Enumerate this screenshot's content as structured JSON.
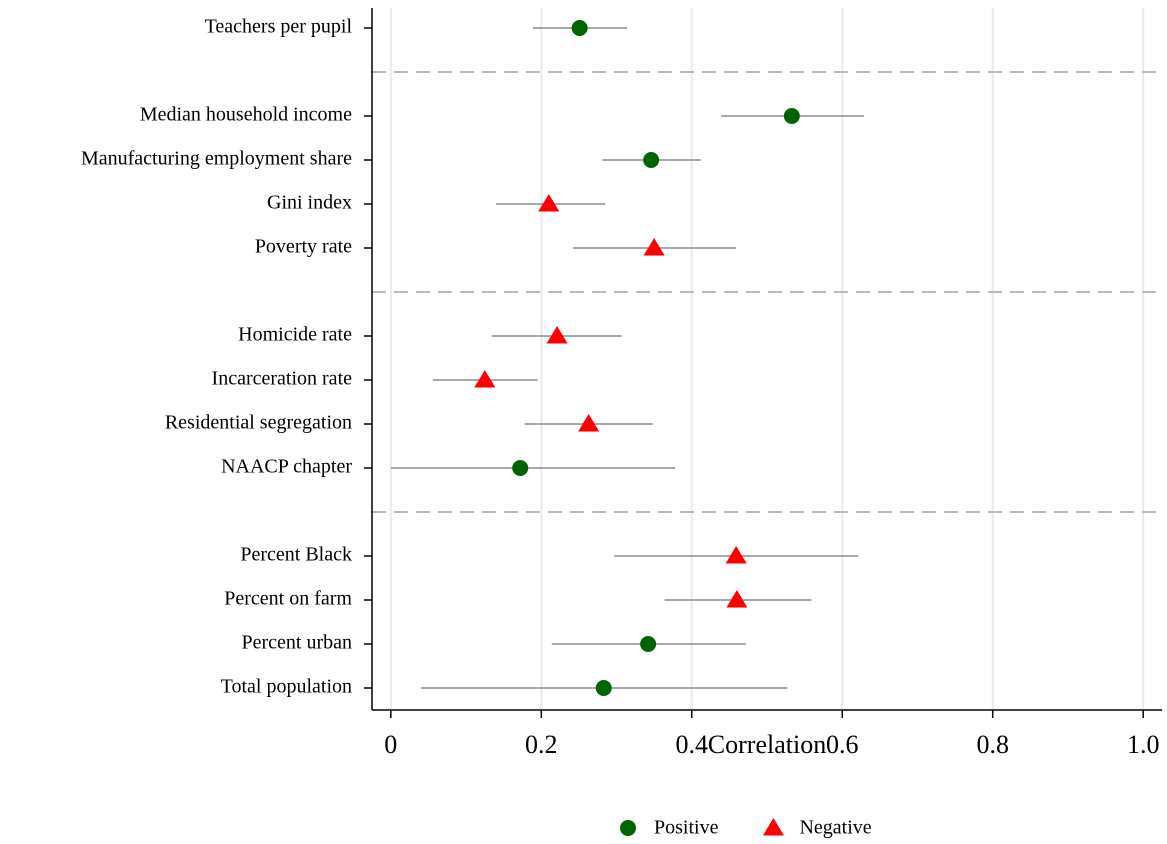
{
  "chart_data": {
    "type": "dot_errorbar",
    "orientation": "horizontal",
    "xlabel": "Correlation",
    "categories": [
      "Teachers per pupil",
      null,
      "Median household income",
      "Manufacturing employment share",
      "Gini index",
      "Poverty rate",
      null,
      "Homicide rate",
      "Incarceration rate",
      "Residential segregation",
      "NAACP chapter",
      null,
      "Percent Black",
      "Percent on farm",
      "Percent urban",
      "Total population"
    ],
    "series": [
      {
        "name": "Positive",
        "color": "#006400",
        "marker": "circle",
        "values": [
          0.251,
          null,
          0.533,
          0.346,
          null,
          null,
          null,
          null,
          null,
          null,
          0.172,
          null,
          null,
          null,
          0.342,
          0.283
        ],
        "ci_low": [
          0.189,
          null,
          0.439,
          0.281,
          null,
          null,
          null,
          null,
          null,
          null,
          0.0,
          null,
          null,
          null,
          0.214,
          0.04
        ],
        "ci_high": [
          0.314,
          null,
          0.629,
          0.412,
          null,
          null,
          null,
          null,
          null,
          null,
          0.378,
          null,
          null,
          null,
          0.472,
          0.527
        ]
      },
      {
        "name": "Negative",
        "color": "#ff0000",
        "marker": "triangle",
        "values": [
          null,
          null,
          null,
          null,
          0.21,
          0.35,
          null,
          0.221,
          0.125,
          0.263,
          null,
          null,
          0.459,
          0.46,
          null,
          null
        ],
        "ci_low": [
          null,
          null,
          null,
          null,
          0.14,
          0.242,
          null,
          0.134,
          0.056,
          0.178,
          null,
          null,
          0.297,
          0.364,
          null,
          null
        ],
        "ci_high": [
          null,
          null,
          null,
          null,
          0.285,
          0.459,
          null,
          0.307,
          0.195,
          0.348,
          null,
          null,
          0.621,
          0.559,
          null,
          null
        ]
      }
    ],
    "xlim": [
      -0.025,
      1.025
    ],
    "xticks": [
      0,
      0.2,
      0.4,
      0.6,
      0.8,
      {
        "value": 1,
        "label": "1.0"
      }
    ],
    "grid": true,
    "legend_position": "bottom"
  }
}
